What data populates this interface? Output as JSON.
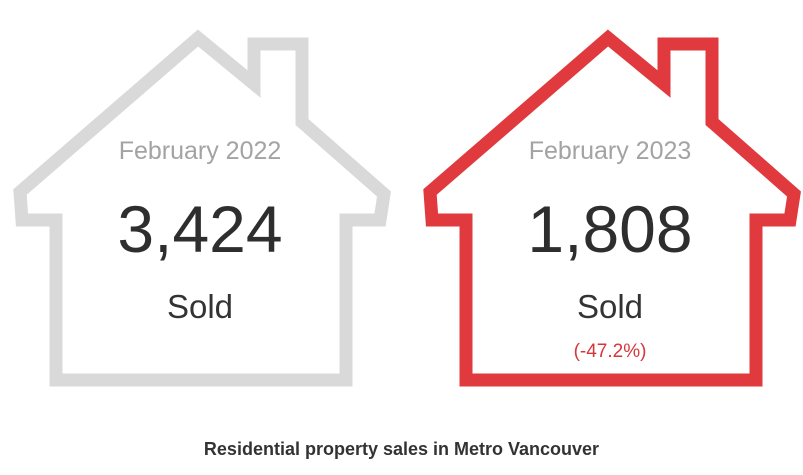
{
  "chart_data": {
    "type": "table",
    "title": "Residential property sales in Metro Vancouver",
    "items": [
      {
        "period": "February 2022",
        "value": 3424,
        "value_label": "3,424",
        "unit": "Sold",
        "change": "",
        "color": "#d9d9d9"
      },
      {
        "period": "February 2023",
        "value": 1808,
        "value_label": "1,808",
        "unit": "Sold",
        "change": "(-47.2%)",
        "color": "#e03a3e"
      }
    ]
  }
}
